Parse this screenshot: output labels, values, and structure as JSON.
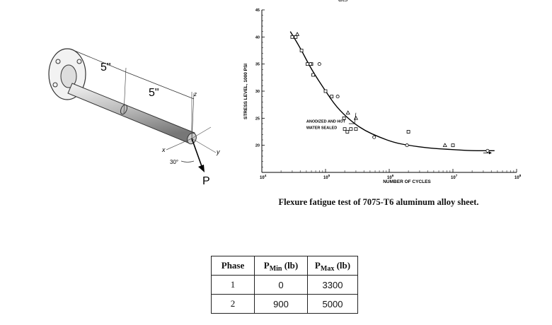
{
  "figure_left": {
    "dim_1": "5\"",
    "dim_2": "5\"",
    "angle": "30°",
    "axis_x": "x",
    "axis_y": "y",
    "axis_z": "z",
    "load": "P"
  },
  "chart_top_cut_text": "ats",
  "chart_data": {
    "type": "scatter",
    "title": "",
    "xlabel": "NUMBER OF CYCLES",
    "ylabel": "STRESS LEVEL, 1000 PSI",
    "x_scale": "log",
    "xlim": [
      10000,
      100000000
    ],
    "ylim": [
      15,
      45
    ],
    "y_ticks": [
      "20",
      "25",
      "30",
      "35",
      "40",
      "45"
    ],
    "x_tick_labels": [
      {
        "base": "10",
        "exp": "4",
        "value": 10000
      },
      {
        "base": "10",
        "exp": "5",
        "value": 100000
      },
      {
        "base": "10",
        "exp": "6",
        "value": 1000000
      },
      {
        "base": "10",
        "exp": "7",
        "value": 10000000
      },
      {
        "base": "10",
        "exp": "8",
        "value": 100000000
      }
    ],
    "annotation": [
      "ANODIZED AND HOT",
      "WATER SEALED"
    ],
    "series": [
      {
        "marker": "square",
        "points": [
          [
            30000,
            40
          ],
          [
            34000,
            40
          ],
          [
            42000,
            37.5
          ],
          [
            52000,
            35
          ],
          [
            60000,
            35
          ],
          [
            64000,
            33
          ],
          [
            100000,
            30
          ],
          [
            125000,
            29
          ],
          [
            195000,
            25
          ],
          [
            200000,
            23
          ],
          [
            220000,
            22.5
          ],
          [
            250000,
            23
          ],
          [
            300000,
            23
          ],
          [
            2000000,
            22.5
          ],
          [
            10000000,
            20
          ]
        ]
      },
      {
        "marker": "circle",
        "points": [
          [
            58000,
            35
          ],
          [
            80000,
            35
          ],
          [
            155000,
            29
          ],
          [
            580000,
            21.5
          ],
          [
            1900000,
            20
          ],
          [
            35000000,
            19
          ]
        ]
      },
      {
        "marker": "triangle",
        "points": [
          [
            36000,
            40.5
          ],
          [
            225000,
            26
          ],
          [
            300000,
            25
          ],
          [
            7500000,
            20
          ]
        ]
      }
    ],
    "fit_curve": [
      [
        28000,
        41
      ],
      [
        40000,
        38
      ],
      [
        60000,
        34
      ],
      [
        100000,
        30
      ],
      [
        150000,
        27
      ],
      [
        250000,
        24.5
      ],
      [
        400000,
        22.8
      ],
      [
        700000,
        21.5
      ],
      [
        1200000,
        20.5
      ],
      [
        2000000,
        20
      ],
      [
        4000000,
        19.5
      ],
      [
        10000000,
        19.2
      ],
      [
        20000000,
        19
      ],
      [
        45000000,
        19
      ]
    ],
    "runout_arrow_at": 35000000
  },
  "caption": "Flexure fatigue test of 7075-T6 aluminum alloy sheet.",
  "table": {
    "headers": {
      "phase": "Phase",
      "pmin_p": "P",
      "pmin_sub": "Min",
      "pmin_unit": " (lb)",
      "pmax_p": "P",
      "pmax_sub": "Max",
      "pmax_unit": " (lb)"
    },
    "rows": [
      {
        "phase": "1",
        "pmin": "0",
        "pmax": "3300"
      },
      {
        "phase": "2",
        "pmin": "900",
        "pmax": "5000"
      }
    ]
  }
}
